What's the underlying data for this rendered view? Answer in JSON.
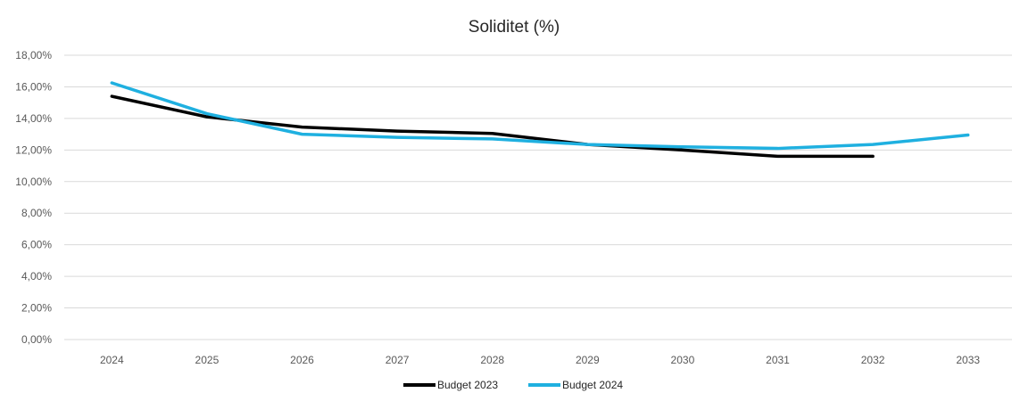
{
  "chart_data": {
    "type": "line",
    "title": "Soliditet (%)",
    "xlabel": "",
    "ylabel": "",
    "categories": [
      "2024",
      "2025",
      "2026",
      "2027",
      "2028",
      "2029",
      "2030",
      "2031",
      "2032",
      "2033"
    ],
    "y_ticks": [
      "0,00%",
      "2,00%",
      "4,00%",
      "6,00%",
      "8,00%",
      "10,00%",
      "12,00%",
      "14,00%",
      "16,00%",
      "18,00%"
    ],
    "ylim": [
      0,
      18
    ],
    "grid": true,
    "legend_position": "bottom",
    "series": [
      {
        "name": "Budget 2023",
        "color": "#000000",
        "values": [
          15.4,
          14.1,
          13.45,
          13.2,
          13.05,
          12.35,
          12.0,
          11.6,
          11.6,
          null
        ]
      },
      {
        "name": "Budget 2024",
        "color": "#1fb0e0",
        "values": [
          16.25,
          14.3,
          13.0,
          12.8,
          12.7,
          12.35,
          12.2,
          12.1,
          12.35,
          12.95
        ]
      }
    ]
  }
}
